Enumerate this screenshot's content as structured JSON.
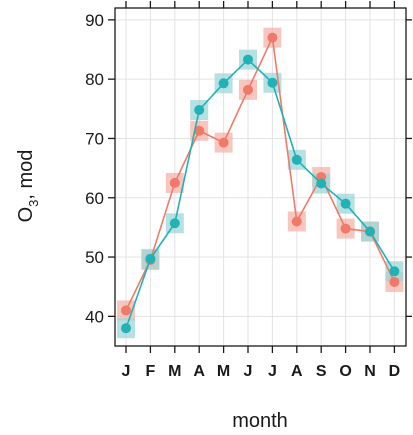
{
  "chart_data": {
    "type": "line",
    "title": "",
    "xlabel": "month",
    "ylabel_main": "O",
    "ylabel_sub": "3",
    "ylabel_rest": ", mod",
    "categories": [
      "J",
      "F",
      "M",
      "A",
      "M",
      "J",
      "J",
      "A",
      "S",
      "O",
      "N",
      "D"
    ],
    "ylim": [
      35,
      92
    ],
    "yticks": [
      40,
      50,
      60,
      70,
      80,
      90
    ],
    "grid": true,
    "series": [
      {
        "color": "#f07a6a",
        "band_color": "#f4b3a8",
        "values": [
          41,
          49.5,
          62.5,
          71.3,
          69.3,
          78.2,
          87.0,
          56.0,
          63.5,
          54.8,
          54.3,
          45.8
        ]
      },
      {
        "color": "#20b2b5",
        "band_color": "#9ed6d8",
        "values": [
          38,
          49.7,
          55.7,
          74.8,
          79.3,
          83.3,
          79.4,
          66.4,
          62.4,
          59.0,
          54.3,
          47.6
        ]
      }
    ]
  }
}
